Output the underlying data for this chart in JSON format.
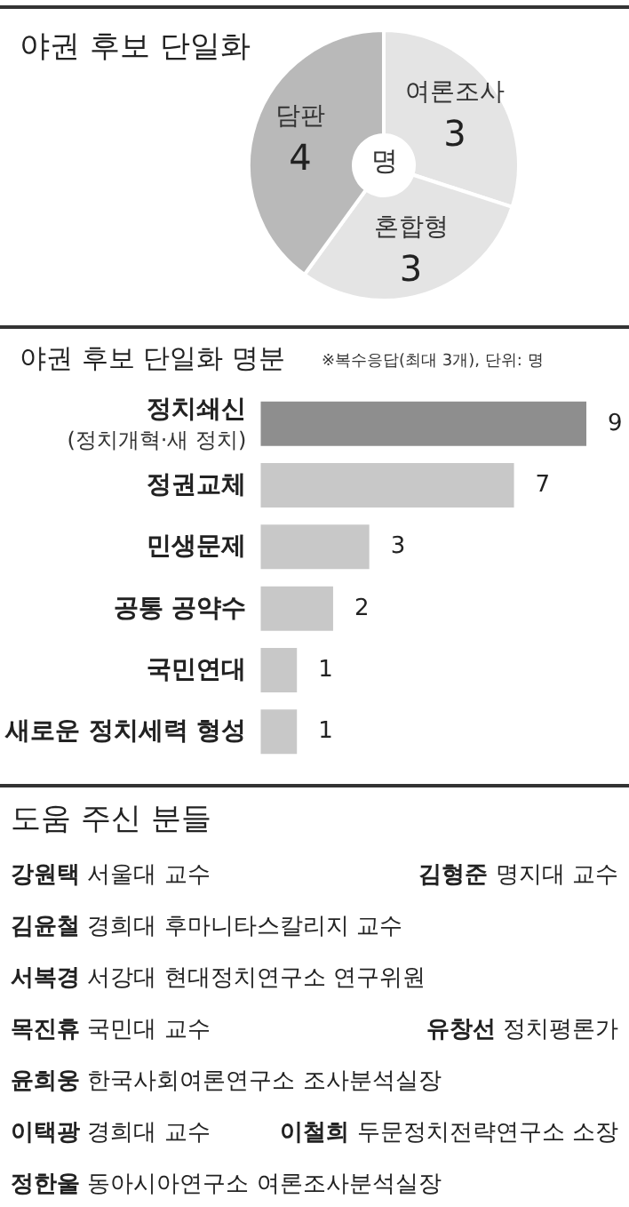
{
  "chart_data": [
    {
      "type": "donut",
      "title": "야권 후보 단일화",
      "categories": [
        "여론조사",
        "혼합형",
        "담판"
      ],
      "values": [
        3,
        3,
        4
      ],
      "colors": [
        "#e4e4e4",
        "#e4e4e4",
        "#b9b9b9"
      ],
      "data_labels": true,
      "legend": false,
      "annotations": [
        "명"
      ]
    },
    {
      "type": "bar",
      "orientation": "horizontal",
      "title": "야권 후보 단일화 명분",
      "subtitle": "※복수응답(최대 3개), 단위: 명",
      "categories": [
        "정치쇄신\n(정치개혁·새 정치)",
        "정권교체",
        "민생문제",
        "공통 공약수",
        "국민연대",
        "새로운 정치세력 형성"
      ],
      "values": [
        9,
        7,
        3,
        2,
        1,
        1
      ],
      "colors": [
        "#8e8e8e",
        "#c8c8c8",
        "#c8c8c8",
        "#c8c8c8",
        "#c8c8c8",
        "#c8c8c8"
      ],
      "data_labels": true,
      "legend": false
    },
    {
      "type": "other",
      "title": "도움 주신 분들",
      "annotations": [
        "강원택 서울대 교수",
        "김형준 명지대 교수",
        "김윤철 경희대 후마니타스칼리지 교수",
        "서복경 서강대 현대정치연구소 연구위원",
        "목진휴 국민대 교수",
        "유창선 정치평론가",
        "윤희웅 한국사회여론연구소 조사분석실장",
        "이택광 경희대 교수",
        "이철희 두문정치전략연구소 소장",
        "정한울 동아시아연구소 여론조사분석실장"
      ]
    }
  ]
}
